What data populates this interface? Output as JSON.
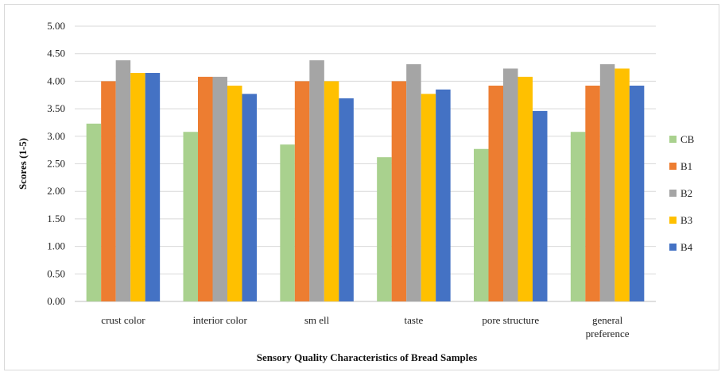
{
  "chart_data": {
    "type": "bar",
    "title": "",
    "xlabel": "Sensory Quality Characteristics of Bread Samples",
    "ylabel": "Scores (1-5)",
    "ylim": [
      0,
      5
    ],
    "ytick_step": 0.5,
    "grid": true,
    "legend_position": "right",
    "categories": [
      "crust color",
      "interior color",
      "sm ell",
      "taste",
      "pore structure",
      "general preference"
    ],
    "series": [
      {
        "name": "CB",
        "color": "#a9d18e",
        "values": [
          3.23,
          3.08,
          2.85,
          2.62,
          2.77,
          3.08
        ]
      },
      {
        "name": "B1",
        "color": "#ed7d31",
        "values": [
          4.0,
          4.08,
          4.0,
          4.0,
          3.92,
          3.92
        ]
      },
      {
        "name": "B2",
        "color": "#a5a5a5",
        "values": [
          4.38,
          4.08,
          4.38,
          4.31,
          4.23,
          4.31
        ]
      },
      {
        "name": "B3",
        "color": "#ffc000",
        "values": [
          4.15,
          3.92,
          4.0,
          3.77,
          4.08,
          4.23
        ]
      },
      {
        "name": "B4",
        "color": "#4472c4",
        "values": [
          4.15,
          3.77,
          3.69,
          3.85,
          3.46,
          3.92
        ]
      }
    ]
  }
}
